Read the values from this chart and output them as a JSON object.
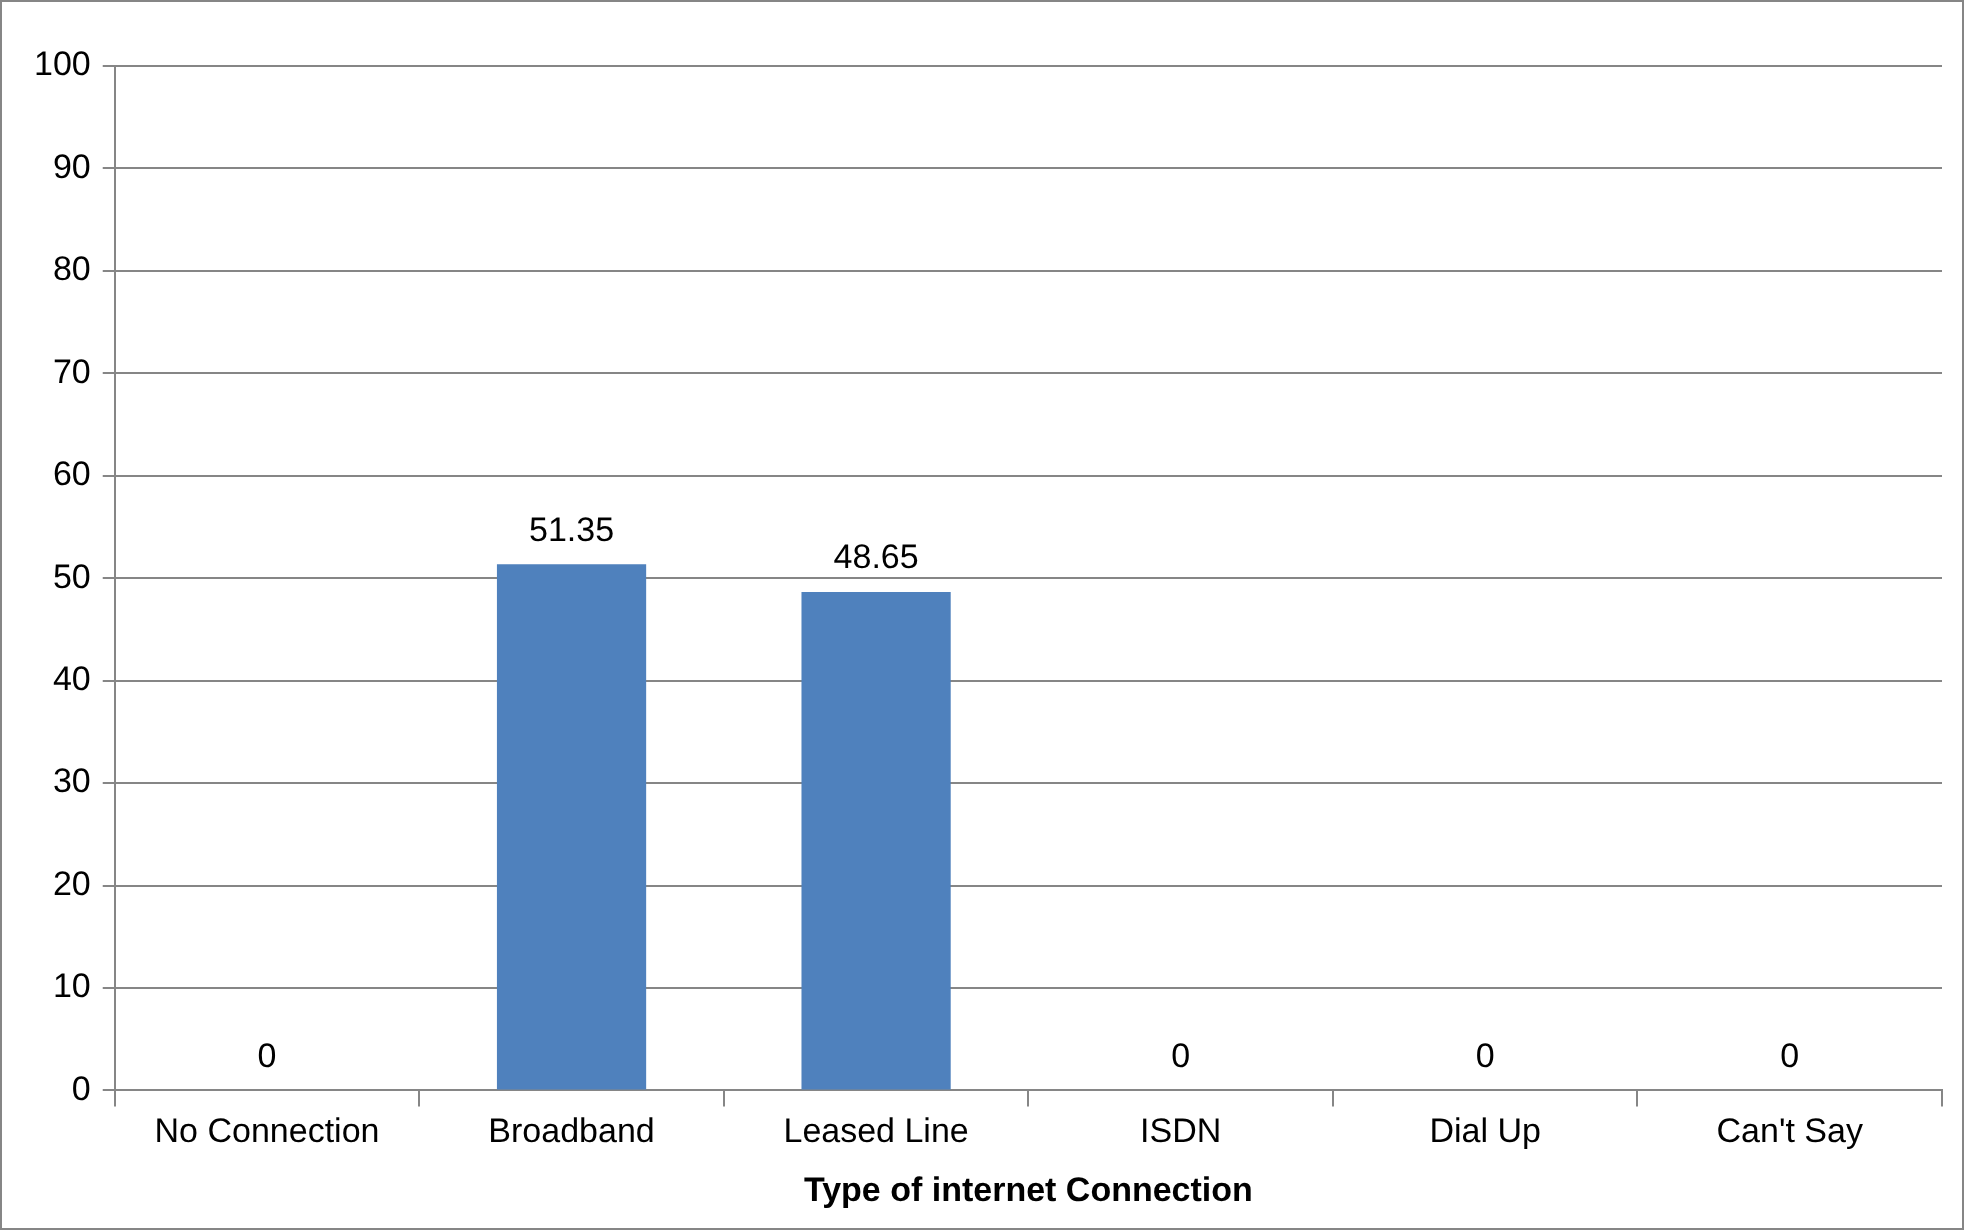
{
  "chart_data": {
    "type": "bar",
    "xlabel": "Type of internet Connection",
    "categories": [
      "No Connection",
      "Broadband",
      "Leased Line",
      "ISDN",
      "Dial Up",
      "Can't Say"
    ],
    "values": [
      0,
      51.35,
      48.65,
      0,
      0,
      0
    ],
    "color": "#4f81bd",
    "ylim": [
      0,
      100
    ],
    "yticks": [
      0,
      10,
      20,
      30,
      40,
      50,
      60,
      70,
      80,
      90,
      100
    ],
    "grid": "y",
    "data_labels": true,
    "legend": false
  }
}
